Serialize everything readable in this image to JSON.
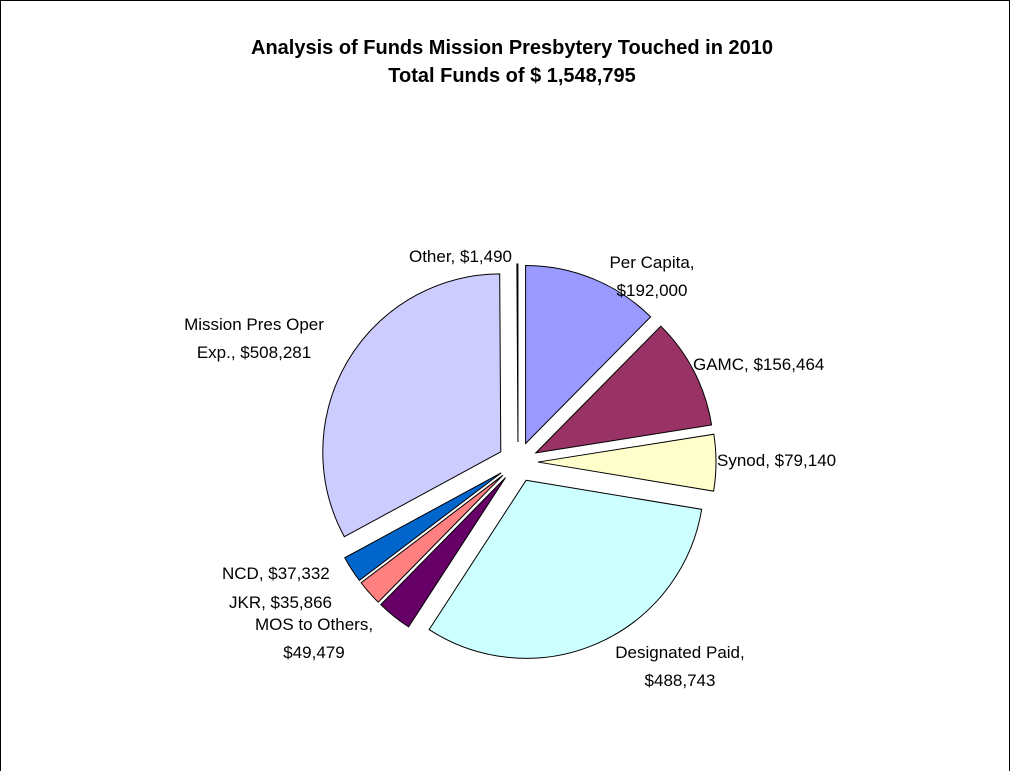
{
  "chart_data": {
    "type": "pie",
    "title": "Analysis of Funds Mission Presbytery Touched in 2010",
    "subtitle": "Total Funds of $ 1,548,795",
    "categories": [
      "Per Capita",
      "GAMC",
      "Synod",
      "Designated Paid",
      "MOS to Others",
      "JKR",
      "NCD",
      "Mission Pres Oper Exp.",
      "Other"
    ],
    "values": [
      192000,
      156464,
      79140,
      488743,
      49479,
      35866,
      37332,
      508281,
      1490
    ],
    "value_labels": [
      "$192,000",
      "$156,464",
      "$79,140",
      "$488,743",
      "$49,479",
      "$35,866",
      "$37,332",
      "$508,281",
      "$1,490"
    ],
    "colors": [
      "#9999ff",
      "#993366",
      "#ffffcc",
      "#ccffff",
      "#660066",
      "#ff8080",
      "#0066cc",
      "#ccccff",
      "#ffffff"
    ]
  }
}
